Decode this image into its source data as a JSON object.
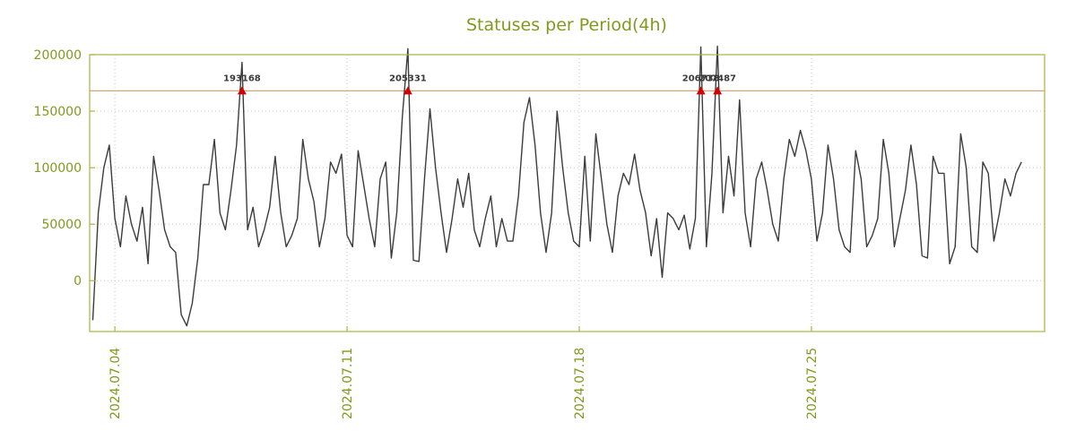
{
  "chart_data": {
    "type": "line",
    "title": "Statuses per Period(4h)",
    "x_start": "2024.07.03 08:00",
    "x_start_day": 0.3333,
    "step_hours": 4,
    "values": [
      -35000,
      60000,
      100000,
      120000,
      55000,
      30000,
      75000,
      50000,
      35000,
      65000,
      15000,
      110000,
      80000,
      45000,
      30000,
      25000,
      -30000,
      -40000,
      -20000,
      20000,
      85000,
      85000,
      125000,
      60000,
      45000,
      80000,
      120000,
      193168,
      45000,
      65000,
      30000,
      45000,
      65000,
      110000,
      60000,
      30000,
      40000,
      55000,
      125000,
      90000,
      70000,
      30000,
      55000,
      105000,
      95000,
      112000,
      40000,
      30000,
      115000,
      85000,
      55000,
      30000,
      90000,
      105000,
      20000,
      60000,
      145000,
      205331,
      18000,
      17000,
      90000,
      152000,
      100000,
      60000,
      25000,
      55000,
      90000,
      65000,
      95000,
      45000,
      30000,
      55000,
      75000,
      30000,
      55000,
      35000,
      35000,
      75000,
      140000,
      162000,
      120000,
      60000,
      25000,
      60000,
      150000,
      100000,
      60000,
      35000,
      30000,
      110000,
      35000,
      130000,
      90000,
      50000,
      25000,
      75000,
      95000,
      85000,
      112000,
      80000,
      60000,
      22000,
      55000,
      3000,
      60000,
      55000,
      45000,
      58000,
      28000,
      55000,
      206738,
      30000,
      95000,
      207487,
      60000,
      110000,
      75000,
      160000,
      60000,
      30000,
      90000,
      105000,
      80000,
      50000,
      35000,
      90000,
      125000,
      110000,
      133000,
      115000,
      90000,
      35000,
      60000,
      120000,
      90000,
      45000,
      30000,
      25000,
      115000,
      90000,
      30000,
      40000,
      55000,
      125000,
      95000,
      30000,
      55000,
      80000,
      120000,
      85000,
      22000,
      20000,
      110000,
      95000,
      95000,
      15000,
      30000,
      130000,
      100000,
      30000,
      25000,
      105000,
      95000,
      35000,
      60000,
      90000,
      75000,
      95000,
      105000
    ],
    "x_ticks": [
      {
        "label": "2024.07.04",
        "day": 1
      },
      {
        "label": "2024.07.11",
        "day": 8
      },
      {
        "label": "2024.07.18",
        "day": 15
      },
      {
        "label": "2024.07.25",
        "day": 22
      }
    ],
    "y_ticks": [
      0,
      50000,
      100000,
      150000,
      200000
    ],
    "ylim": [
      -45000,
      200000
    ],
    "xlim_days": [
      0.24,
      29.03
    ],
    "threshold_line": 168000,
    "annotations": [
      {
        "label": "193168",
        "value": 193168,
        "day": 4.833
      },
      {
        "label": "205331",
        "value": 205331,
        "day": 9.833
      },
      {
        "label": "206738",
        "value": 206738,
        "day": 18.667
      },
      {
        "label": "207487",
        "value": 207487,
        "day": 19.167
      }
    ],
    "grid": true,
    "legend": "none",
    "series_color": "#3c3c3c",
    "threshold_color": "#cba87a",
    "axis_color": "#a9b440",
    "label_color": "#7f9a1e",
    "grid_color": "#c8c8c8",
    "annotation_color": "#d40000",
    "annotation_label_color": "#3a3a3a"
  }
}
